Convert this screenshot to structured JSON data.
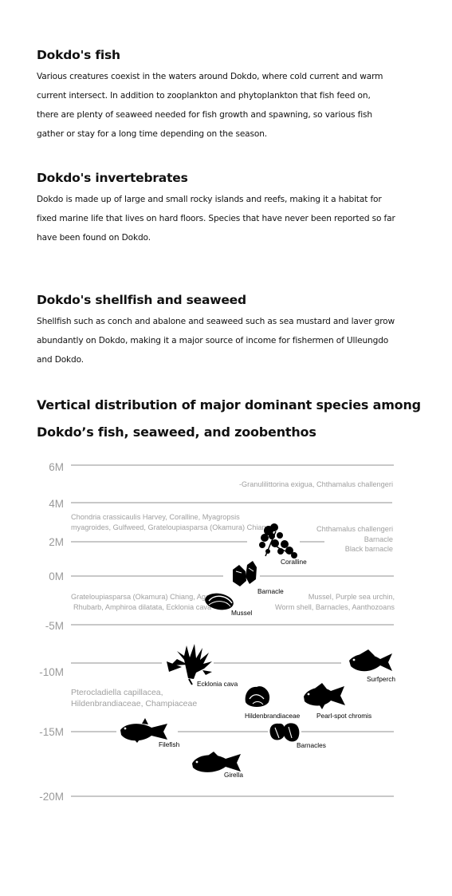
{
  "sections": [
    {
      "title": "Dokdo's fish",
      "lines": [
        "Various creatures coexist in the waters around Dokdo, where  cold current and warm",
        "current intersect. In addition to zooplankton and phytoplankton that fish feed on,",
        "there are plenty of seaweed needed  for fish growth and spawning, so various fish",
        "gather or stay for a long time depending on the season."
      ]
    },
    {
      "title": "Dokdo's invertebrates",
      "lines": [
        "Dokdo is made up of large and small rocky islands and reefs, making it a habitat for",
        "fixed marine life that lives on hard floors. Species that have never been  reported so far",
        "have been found on Dokdo."
      ]
    },
    {
      "title": "Dokdo's shellfish and seaweed",
      "lines": [
        "Shellfish such as conch and abalone and seaweed such as sea mustard and laver grow",
        "abundantly on Dokdo, making it a major source of income for fishermen of Ulleungdo",
        "and Dokdo."
      ]
    }
  ],
  "diagram": {
    "title_lines": [
      "Vertical distribution of major dominant species among",
      "Dokdo’s fish, seaweed, and zoobenthos"
    ],
    "depth_labels": [
      "6M",
      "4M",
      "2M",
      "0M",
      "-5M",
      "-10M",
      "-15M",
      "-20M"
    ],
    "notes": {
      "top_right": "-Granulilittorina exigua, Chthamalus challengeri",
      "left_2m": [
        "Chondria crassicaulis Harvey, Coralline, Myagropsis",
        "myagroides,  Gulfweed, Grateloupiasparsa (Okamura) Chiang"
      ],
      "right_2m": [
        "Chthamalus challengeri",
        "Barnacle",
        "Black barnacle"
      ],
      "left_0m": [
        "Grateloupiasparsa (Okamura) Chiang, Agar,",
        "Rhubarb, Amphiroa dilatata, Ecklonia cava"
      ],
      "right_0m": [
        "Mussel, Purple sea urchin,",
        "Worm shell, Barnacles, Aanthozoans"
      ],
      "left_10m": [
        "Pterocladiella capillacea,",
        "Hildenbrandiaceae, Champiaceae"
      ]
    },
    "species": {
      "coralline": "Coralline",
      "barnacle": "Barnacle",
      "mussel": "Mussel",
      "ecklonia": "Ecklonia cava",
      "surfperch": "Surfperch",
      "hildenbrandiaceae": "Hildenbrandiaceae",
      "pearlspot": "Pearl-spot chromis",
      "filefish": "Filefish",
      "barnacles": "Barnacles",
      "girella": "Girella"
    },
    "colors": {
      "line": "#a6a6a6",
      "label": "#9a9a9a",
      "note": "#a0a0a0",
      "icon": "#000000"
    }
  }
}
